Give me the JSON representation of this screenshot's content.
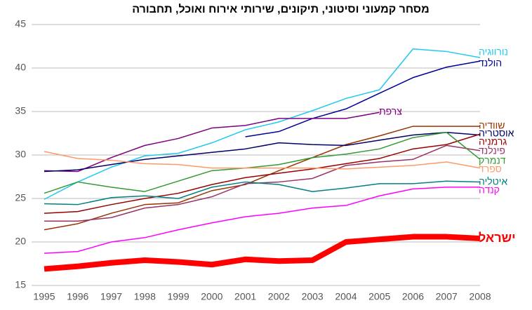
{
  "chart_data": {
    "type": "line",
    "title": "מסחר קמעוני וסיטוני, תיקונים, שירותי אירוח ואוכל, תחבורה",
    "categories": [
      "1995",
      "1996",
      "1997",
      "1998",
      "1999",
      "2000",
      "2001",
      "2002",
      "2003",
      "2004",
      "2005",
      "2006",
      "2007",
      "2008"
    ],
    "ylim": [
      15,
      45
    ],
    "yticks": [
      15,
      20,
      25,
      30,
      35,
      40,
      45
    ],
    "grid": true,
    "series": [
      {
        "name": "נורווגיה",
        "color": "#22c8f0",
        "values": [
          24.9,
          26.9,
          28.6,
          29.9,
          30.2,
          31.4,
          32.9,
          33.8,
          35.1,
          36.5,
          37.5,
          42.2,
          41.9,
          41.2
        ]
      },
      {
        "name": "הולנד",
        "color": "#000099",
        "values": [
          null,
          null,
          null,
          null,
          null,
          null,
          32.1,
          32.7,
          34.2,
          35.3,
          37.1,
          38.9,
          40.1,
          40.8
        ]
      },
      {
        "name": "צרפת",
        "color": "#800080",
        "values": [
          28.2,
          28.1,
          29.7,
          31.1,
          31.9,
          33.1,
          33.4,
          34.2,
          34.2,
          34.2,
          34.9,
          null,
          null,
          null
        ]
      },
      {
        "name": "שוודיה",
        "color": "#993300",
        "values": [
          21.4,
          22.1,
          23.3,
          24.3,
          24.5,
          25.9,
          26.6,
          28.2,
          29.7,
          31.2,
          32.2,
          33.3,
          33.3,
          33.3
        ]
      },
      {
        "name": "אוסטריה",
        "color": "#000066",
        "values": [
          28.1,
          28.3,
          28.9,
          29.5,
          29.9,
          30.3,
          30.7,
          31.4,
          31.2,
          31.1,
          31.7,
          32.3,
          32.6,
          32.3
        ]
      },
      {
        "name": "גרמניה",
        "color": "#990000",
        "values": [
          23.3,
          23.5,
          24.3,
          25.0,
          25.6,
          26.6,
          27.4,
          27.9,
          28.4,
          29.0,
          29.6,
          30.7,
          31.2,
          32.4
        ]
      },
      {
        "name": "פינלנד",
        "color": "#993366",
        "values": [
          22.4,
          22.4,
          22.8,
          23.9,
          24.3,
          25.2,
          26.7,
          26.9,
          27.3,
          28.8,
          29.2,
          29.5,
          31.1,
          30.5
        ]
      },
      {
        "name": "דנמרק",
        "color": "#339933",
        "values": [
          25.6,
          26.9,
          26.3,
          25.8,
          27.0,
          28.2,
          28.5,
          28.9,
          29.7,
          30.1,
          30.7,
          32.0,
          32.6,
          29.5
        ]
      },
      {
        "name": "ספרד",
        "color": "#ff9966",
        "values": [
          30.4,
          29.6,
          29.4,
          29.0,
          28.9,
          28.5,
          28.5,
          28.5,
          28.5,
          28.4,
          28.6,
          28.8,
          29.2,
          28.5
        ]
      },
      {
        "name": "איטליה",
        "color": "#008080",
        "values": [
          24.4,
          24.3,
          25.1,
          25.3,
          25.0,
          26.3,
          26.9,
          26.6,
          25.8,
          26.2,
          26.7,
          26.7,
          27.0,
          26.9
        ]
      },
      {
        "name": "קנדה",
        "color": "#ff00ff",
        "values": [
          18.7,
          18.9,
          20.0,
          20.5,
          21.4,
          22.2,
          22.9,
          23.3,
          23.9,
          24.2,
          25.3,
          26.1,
          26.3,
          26.3
        ]
      },
      {
        "name": "ישראל",
        "color": "#ff0000",
        "values": [
          16.9,
          17.2,
          17.6,
          17.9,
          17.7,
          17.4,
          18.0,
          17.8,
          17.9,
          20.0,
          20.3,
          20.6,
          20.6,
          20.4
        ]
      }
    ]
  }
}
